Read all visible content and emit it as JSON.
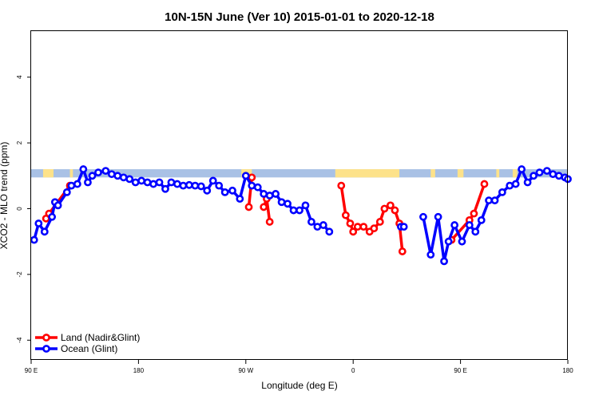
{
  "chart_data": {
    "type": "line",
    "title": "10N-15N June (Ver 10)   2015-01-01 to 2020-12-18",
    "xlabel": "Longitude (deg E)",
    "ylabel": "XCO2 - MLO trend (ppm)",
    "xlim": [
      90,
      450
    ],
    "ylim": [
      -4.6,
      5.4
    ],
    "x_ticks": [
      {
        "value": 90,
        "label": "90 E"
      },
      {
        "value": 180,
        "label": "180"
      },
      {
        "value": 270,
        "label": "90 W"
      },
      {
        "value": 360,
        "label": "0"
      },
      {
        "value": 450,
        "label": "90 E"
      },
      {
        "value": 540,
        "label": "180"
      }
    ],
    "x_tick_display": [
      90,
      162,
      234,
      306,
      378,
      450
    ],
    "y_ticks": [
      {
        "value": -4,
        "label": "-4"
      },
      {
        "value": -2,
        "label": "-2"
      },
      {
        "value": 0,
        "label": "0"
      },
      {
        "value": 2,
        "label": "2"
      },
      {
        "value": 4,
        "label": "4"
      }
    ],
    "land_band": {
      "y_range": [
        0.95,
        1.2
      ],
      "ocean_color": "#a9c1e5",
      "land_color": "#fde28a",
      "land_segments": [
        [
          98,
          105
        ],
        [
          116,
          118
        ],
        [
          231,
          238
        ],
        [
          294,
          337
        ],
        [
          358,
          361
        ],
        [
          376,
          380
        ],
        [
          402,
          404
        ],
        [
          413,
          416
        ]
      ]
    },
    "series": [
      {
        "name": "Land (Nadir&Glint)",
        "color": "#ff0000",
        "segments": [
          [
            [
              100,
              -0.3
            ],
            [
              102,
              -0.15
            ],
            [
              116,
              0.7
            ]
          ],
          [
            [
              236,
              0.05
            ],
            [
              238,
              0.95
            ]
          ],
          [
            [
              246,
              0.05
            ],
            [
              248,
              0.3
            ],
            [
              250,
              -0.4
            ]
          ],
          [
            [
              298,
              0.7
            ],
            [
              301,
              -0.2
            ],
            [
              304,
              -0.45
            ],
            [
              306,
              -0.7
            ],
            [
              309,
              -0.55
            ],
            [
              313,
              -0.55
            ],
            [
              317,
              -0.7
            ],
            [
              320,
              -0.6
            ],
            [
              324,
              -0.4
            ],
            [
              327,
              0.0
            ],
            [
              331,
              0.1
            ],
            [
              334,
              -0.05
            ],
            [
              337,
              -0.45
            ],
            [
              339,
              -1.3
            ]
          ],
          [
            [
              372,
              -0.95
            ],
            [
              384,
              -0.35
            ],
            [
              387,
              -0.15
            ],
            [
              394,
              0.75
            ]
          ]
        ]
      },
      {
        "name": "Ocean (Glint)",
        "color": "#0000ff",
        "segments": [
          [
            [
              92,
              -0.95
            ],
            [
              95,
              -0.45
            ],
            [
              99,
              -0.7
            ],
            [
              104,
              -0.25
            ],
            [
              106,
              0.2
            ],
            [
              108,
              0.1
            ],
            [
              114,
              0.5
            ],
            [
              117,
              0.7
            ],
            [
              121,
              0.75
            ],
            [
              125,
              1.2
            ],
            [
              128,
              0.8
            ],
            [
              131,
              1.0
            ],
            [
              135,
              1.1
            ],
            [
              140,
              1.15
            ],
            [
              144,
              1.05
            ],
            [
              148,
              1.0
            ],
            [
              152,
              0.95
            ],
            [
              156,
              0.9
            ],
            [
              160,
              0.8
            ],
            [
              164,
              0.85
            ],
            [
              168,
              0.8
            ],
            [
              172,
              0.75
            ],
            [
              176,
              0.8
            ],
            [
              180,
              0.6
            ],
            [
              184,
              0.8
            ],
            [
              188,
              0.75
            ],
            [
              192,
              0.7
            ],
            [
              196,
              0.72
            ],
            [
              200,
              0.7
            ],
            [
              204,
              0.68
            ],
            [
              208,
              0.55
            ],
            [
              212,
              0.85
            ],
            [
              216,
              0.7
            ],
            [
              220,
              0.5
            ],
            [
              225,
              0.55
            ],
            [
              230,
              0.3
            ],
            [
              234,
              1.0
            ],
            [
              238,
              0.7
            ],
            [
              242,
              0.65
            ],
            [
              246,
              0.45
            ],
            [
              250,
              0.4
            ],
            [
              254,
              0.45
            ],
            [
              258,
              0.2
            ],
            [
              262,
              0.15
            ],
            [
              266,
              -0.05
            ],
            [
              270,
              -0.05
            ],
            [
              274,
              0.1
            ],
            [
              278,
              -0.4
            ],
            [
              282,
              -0.55
            ],
            [
              286,
              -0.5
            ],
            [
              290,
              -0.7
            ]
          ],
          [
            [
              338,
              -0.55
            ],
            [
              340,
              -0.55
            ]
          ],
          [
            [
              353,
              -0.25
            ],
            [
              358,
              -1.4
            ],
            [
              363,
              -0.25
            ],
            [
              367,
              -1.6
            ],
            [
              370,
              -1.0
            ],
            [
              374,
              -0.5
            ],
            [
              379,
              -1.0
            ],
            [
              384,
              -0.5
            ],
            [
              388,
              -0.7
            ],
            [
              392,
              -0.35
            ],
            [
              397,
              0.25
            ],
            [
              401,
              0.25
            ],
            [
              406,
              0.5
            ],
            [
              411,
              0.7
            ],
            [
              415,
              0.75
            ],
            [
              419,
              1.2
            ],
            [
              423,
              0.8
            ],
            [
              427,
              1.0
            ],
            [
              431,
              1.1
            ],
            [
              436,
              1.15
            ],
            [
              440,
              1.05
            ],
            [
              444,
              1.0
            ],
            [
              448,
              0.95
            ],
            [
              450,
              0.9
            ]
          ]
        ]
      }
    ],
    "legend": {
      "position": "bottom-left"
    }
  }
}
